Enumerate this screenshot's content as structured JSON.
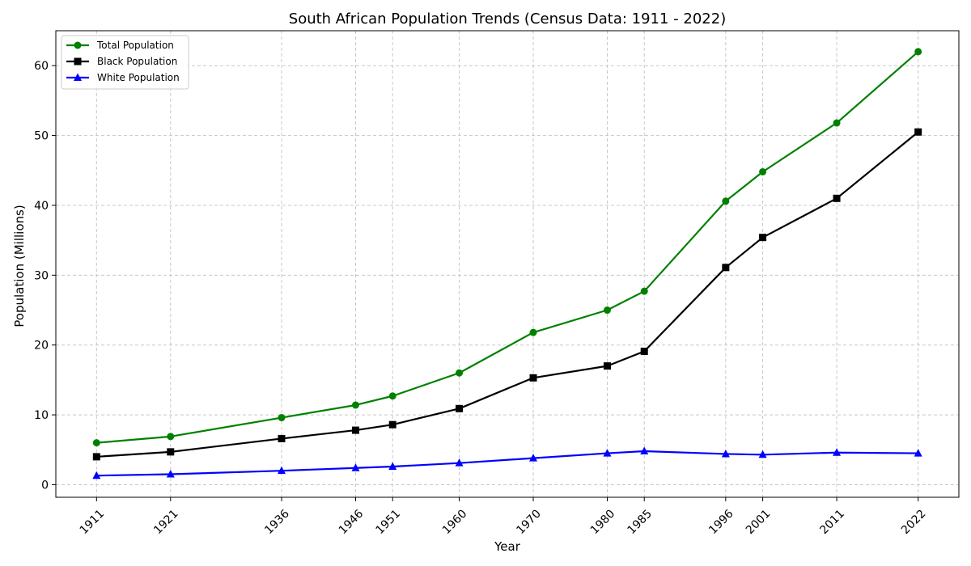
{
  "chart_data": {
    "type": "line",
    "title": "South African Population Trends (Census Data: 1911 - 2022)",
    "xlabel": "Year",
    "ylabel": "Population (Millions)",
    "x": [
      1911,
      1921,
      1936,
      1946,
      1951,
      1960,
      1970,
      1980,
      1985,
      1996,
      2001,
      2011,
      2022
    ],
    "x_tick_labels": [
      "1911",
      "1921",
      "1936",
      "1946",
      "1951",
      "1960",
      "1970",
      "1980",
      "1985",
      "1996",
      "2001",
      "2011",
      "2022"
    ],
    "xlim": [
      1905.5,
      2027.5
    ],
    "ylim": [
      -1.8,
      65
    ],
    "y_ticks": [
      0,
      10,
      20,
      30,
      40,
      50,
      60
    ],
    "y_tick_labels": [
      "0",
      "10",
      "20",
      "30",
      "40",
      "50",
      "60"
    ],
    "grid": true,
    "legend_position": "top-left",
    "series": [
      {
        "name": "Total Population",
        "color": "#008000",
        "marker": "circle",
        "values": [
          6.0,
          6.9,
          9.6,
          11.4,
          12.7,
          16.0,
          21.8,
          25.0,
          27.7,
          40.6,
          44.8,
          51.8,
          62.0
        ]
      },
      {
        "name": "Black Population",
        "color": "#000000",
        "marker": "square",
        "values": [
          4.0,
          4.7,
          6.6,
          7.8,
          8.6,
          10.9,
          15.3,
          17.0,
          19.1,
          31.1,
          35.4,
          41.0,
          50.5
        ]
      },
      {
        "name": "White Population",
        "color": "#0000ff",
        "marker": "triangle",
        "values": [
          1.3,
          1.5,
          2.0,
          2.4,
          2.6,
          3.1,
          3.8,
          4.5,
          4.8,
          4.4,
          4.3,
          4.6,
          4.5
        ]
      }
    ]
  }
}
